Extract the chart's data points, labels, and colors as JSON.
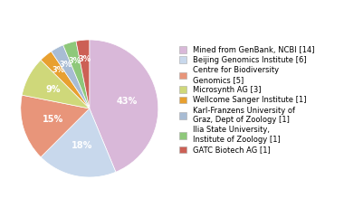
{
  "labels": [
    "Mined from GenBank, NCBI [14]",
    "Beijing Genomics Institute [6]",
    "Centre for Biodiversity\nGenomics [5]",
    "Microsynth AG [3]",
    "Wellcome Sanger Institute [1]",
    "Karl-Franzens University of\nGraz, Dept of Zoology [1]",
    "Ilia State University,\nInstitute of Zoology [1]",
    "GATC Biotech AG [1]"
  ],
  "values": [
    14,
    6,
    5,
    3,
    1,
    1,
    1,
    1
  ],
  "colors": [
    "#d9b8d9",
    "#c8d8ec",
    "#e8957a",
    "#cfd87a",
    "#e8a030",
    "#a8bcd4",
    "#8ec87a",
    "#cc6055"
  ],
  "pct_labels": [
    "43%",
    "18%",
    "15%",
    "9%",
    "3%",
    "3%",
    "3%",
    "3%"
  ],
  "startangle": 90,
  "background_color": "#ffffff",
  "pct_color": "white",
  "legend_fontsize": 6.0
}
